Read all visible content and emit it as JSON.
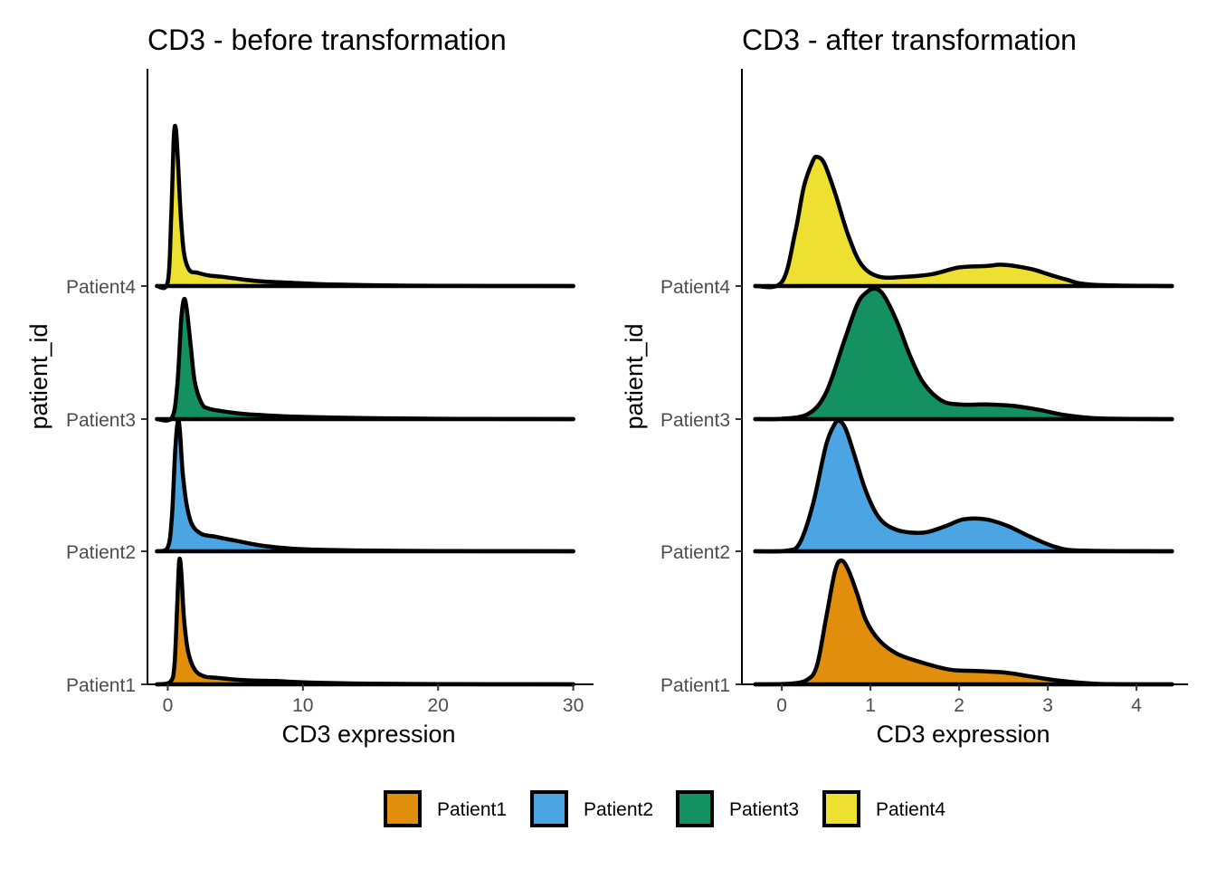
{
  "chart_data": [
    {
      "type": "ridgeline",
      "title": "CD3 - before transformation",
      "xlabel": "CD3 expression",
      "ylabel": "patient_id",
      "xlim": [
        -1.5,
        31.5
      ],
      "xticks": [
        0,
        10,
        20,
        30
      ],
      "categories": [
        "Patient1",
        "Patient2",
        "Patient3",
        "Patient4"
      ],
      "series": [
        {
          "name": "Patient1",
          "x": [
            -0.8,
            0.2,
            0.5,
            0.7,
            0.85,
            1.0,
            1.2,
            1.5,
            2.0,
            2.7,
            3.5,
            4.5,
            6,
            8,
            10,
            14,
            20,
            25,
            30
          ],
          "density": [
            0,
            0.02,
            0.15,
            0.6,
            0.93,
            0.85,
            0.5,
            0.25,
            0.11,
            0.06,
            0.05,
            0.04,
            0.03,
            0.025,
            0.015,
            0.006,
            0.002,
            0.001,
            0
          ]
        },
        {
          "name": "Patient2",
          "x": [
            -0.8,
            0.0,
            0.3,
            0.55,
            0.75,
            0.9,
            1.1,
            1.4,
            1.8,
            2.5,
            3.5,
            5.0,
            6.5,
            8.0,
            10,
            14,
            20,
            25,
            30
          ],
          "density": [
            0,
            0.03,
            0.25,
            0.75,
            0.98,
            0.9,
            0.6,
            0.35,
            0.2,
            0.13,
            0.11,
            0.08,
            0.05,
            0.03,
            0.015,
            0.006,
            0.002,
            0.001,
            0
          ]
        },
        {
          "name": "Patient3",
          "x": [
            -0.8,
            0.3,
            0.7,
            1.0,
            1.2,
            1.4,
            1.7,
            2.0,
            2.5,
            3.0,
            4.0,
            5.5,
            7,
            9,
            12,
            16,
            20,
            25,
            30
          ],
          "density": [
            0,
            0.01,
            0.25,
            0.75,
            0.9,
            0.83,
            0.55,
            0.28,
            0.12,
            0.08,
            0.06,
            0.04,
            0.03,
            0.02,
            0.012,
            0.006,
            0.003,
            0.001,
            0
          ]
        },
        {
          "name": "Patient4",
          "x": [
            -0.8,
            0.0,
            0.25,
            0.45,
            0.6,
            0.75,
            0.95,
            1.2,
            1.6,
            2.2,
            3.0,
            4.0,
            5.5,
            7,
            9,
            12,
            16,
            20,
            25,
            30
          ],
          "density": [
            0,
            0.03,
            0.5,
            1.12,
            1.18,
            0.95,
            0.55,
            0.25,
            0.12,
            0.1,
            0.08,
            0.07,
            0.05,
            0.035,
            0.025,
            0.012,
            0.005,
            0.002,
            0.001,
            0
          ]
        }
      ]
    },
    {
      "type": "ridgeline",
      "title": "CD3 - after transformation",
      "xlabel": "CD3 expression",
      "ylabel": "patient_id",
      "xlim": [
        -0.45,
        4.58
      ],
      "xticks": [
        0,
        1,
        2,
        3,
        4
      ],
      "categories": [
        "Patient1",
        "Patient2",
        "Patient3",
        "Patient4"
      ],
      "series": [
        {
          "name": "Patient1",
          "x": [
            -0.3,
            0.1,
            0.3,
            0.4,
            0.5,
            0.6,
            0.67,
            0.75,
            0.85,
            0.95,
            1.1,
            1.3,
            1.6,
            1.9,
            2.2,
            2.5,
            2.8,
            3.1,
            3.5,
            3.8,
            4.4
          ],
          "density": [
            0,
            0.005,
            0.04,
            0.15,
            0.5,
            0.85,
            0.93,
            0.86,
            0.68,
            0.48,
            0.33,
            0.23,
            0.16,
            0.11,
            0.1,
            0.09,
            0.06,
            0.03,
            0.006,
            0.001,
            0
          ]
        },
        {
          "name": "Patient2",
          "x": [
            -0.3,
            0.05,
            0.2,
            0.35,
            0.5,
            0.6,
            0.65,
            0.72,
            0.82,
            0.95,
            1.1,
            1.3,
            1.6,
            1.85,
            2.05,
            2.3,
            2.55,
            2.8,
            3.1,
            3.4,
            4.4
          ],
          "density": [
            0,
            0.004,
            0.06,
            0.35,
            0.8,
            0.96,
            0.98,
            0.92,
            0.72,
            0.45,
            0.25,
            0.16,
            0.14,
            0.19,
            0.24,
            0.24,
            0.19,
            0.11,
            0.03,
            0.005,
            0
          ]
        },
        {
          "name": "Patient3",
          "x": [
            -0.3,
            0.0,
            0.3,
            0.5,
            0.7,
            0.85,
            0.95,
            1.05,
            1.15,
            1.3,
            1.45,
            1.6,
            1.8,
            2.0,
            2.3,
            2.6,
            2.9,
            3.2,
            3.6,
            4.4
          ],
          "density": [
            0,
            0.003,
            0.04,
            0.2,
            0.58,
            0.86,
            0.95,
            0.98,
            0.93,
            0.73,
            0.47,
            0.27,
            0.14,
            0.11,
            0.11,
            0.1,
            0.07,
            0.03,
            0.005,
            0
          ]
        },
        {
          "name": "Patient4",
          "x": [
            -0.3,
            0.0,
            0.15,
            0.25,
            0.35,
            0.4,
            0.48,
            0.6,
            0.75,
            0.9,
            1.1,
            1.4,
            1.7,
            2.0,
            2.3,
            2.5,
            2.8,
            3.0,
            3.2,
            3.5,
            4.4
          ],
          "density": [
            0,
            0.03,
            0.4,
            0.75,
            0.94,
            0.97,
            0.92,
            0.7,
            0.38,
            0.16,
            0.07,
            0.07,
            0.09,
            0.14,
            0.15,
            0.16,
            0.13,
            0.09,
            0.05,
            0.01,
            0
          ]
        }
      ]
    }
  ],
  "legend": {
    "position": "bottom",
    "items": [
      {
        "label": "Patient1",
        "color": "#E08E0B"
      },
      {
        "label": "Patient2",
        "color": "#4CA5E3"
      },
      {
        "label": "Patient3",
        "color": "#149160"
      },
      {
        "label": "Patient4",
        "color": "#EDE030"
      }
    ]
  }
}
